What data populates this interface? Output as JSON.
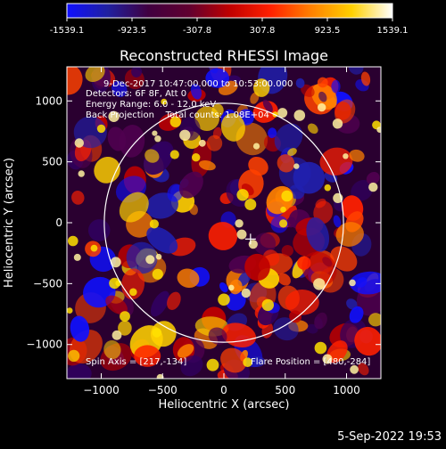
{
  "colorbar": {
    "ticks": [
      "-1539.1",
      "-923.5",
      "-307.8",
      "307.8",
      "923.5",
      "1539.1"
    ],
    "stops": [
      "#1010ff",
      "#2020a0",
      "#400040",
      "#600030",
      "#c00000",
      "#ff2000",
      "#ff8000",
      "#ffd000",
      "#ffffff"
    ]
  },
  "footer": {
    "timestamp": "5-Sep-2022 19:53"
  },
  "chart_data": {
    "type": "heatmap",
    "title": "Reconstructed RHESSI Image",
    "xlabel": "Heliocentric X (arcsec)",
    "ylabel": "Heliocentric Y (arcsec)",
    "xlim": [
      -1280,
      1280
    ],
    "ylim": [
      -1280,
      1280
    ],
    "xticks": [
      -1000,
      -500,
      0,
      500,
      1000
    ],
    "yticks": [
      -1000,
      -500,
      0,
      500,
      1000
    ],
    "xtick_labels": [
      "−1000",
      "−500",
      "0",
      "500",
      "1000"
    ],
    "ytick_labels": [
      "−1000",
      "−500",
      "0",
      "500",
      "1000"
    ],
    "value_range": [
      -1539.1,
      1539.1
    ],
    "annotations": [
      "9-Dec-2017 10:47:00.000 to 10:53:00.000",
      "Detectors: 6F 8F, Att 0",
      "Energy Range: 6.0 - 12.0 keV",
      "Back Projection    Total counts: 1.08E+04"
    ],
    "footer_left": "Spin Axis = [217,-134]",
    "footer_right": "Flare Position = [480,-284]",
    "solar_disk": {
      "center": [
        0,
        0
      ],
      "radius_arcsec": 975
    },
    "marker": {
      "symbol": "+",
      "x": 217,
      "y": -134
    }
  }
}
